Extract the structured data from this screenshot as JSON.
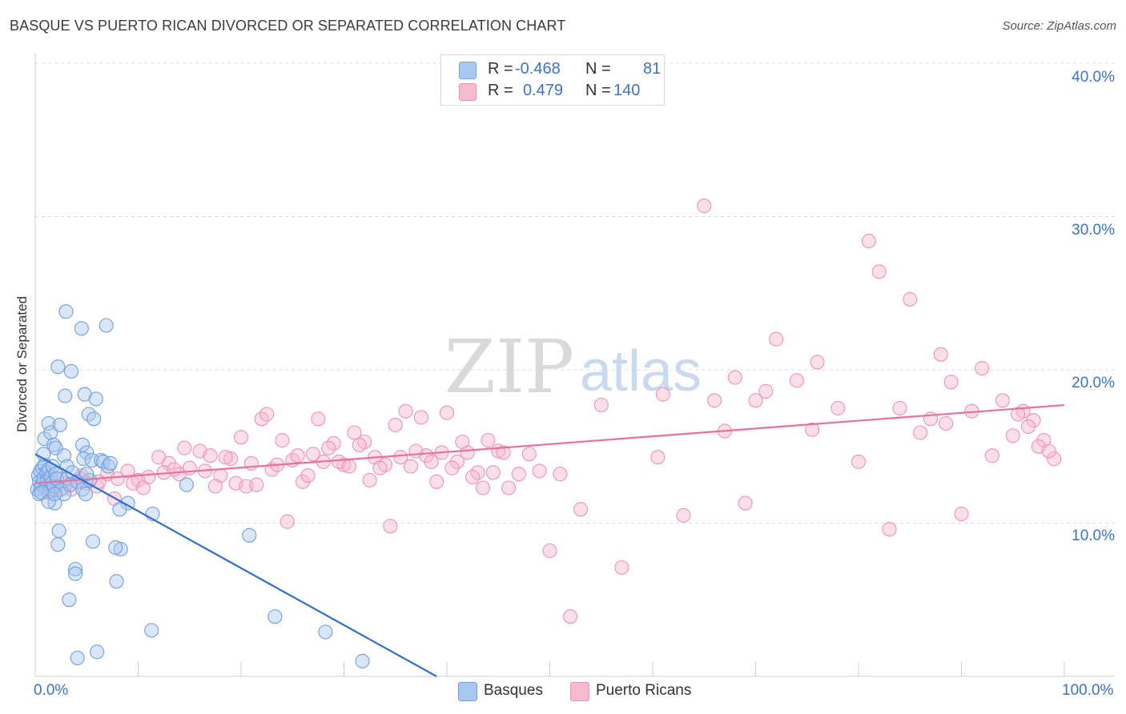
{
  "title": "BASQUE VS PUERTO RICAN DIVORCED OR SEPARATED CORRELATION CHART",
  "source": "Source: ZipAtlas.com",
  "watermark": {
    "zip": "ZIP",
    "atlas": "atlas"
  },
  "legend": {
    "rows": [
      {
        "r_label": "R =",
        "r_value": "-0.468",
        "n_label": "N =",
        "n_value": "81",
        "color": "#a9c7f0"
      },
      {
        "r_label": "R =",
        "r_value": "0.479",
        "n_label": "N =",
        "n_value": "140",
        "color": "#f7b9cc"
      }
    ]
  },
  "bottom_legend": [
    {
      "label": "Basques",
      "color": "#a9c7f0"
    },
    {
      "label": "Puerto Ricans",
      "color": "#f7b9cc"
    }
  ],
  "chart_data": {
    "type": "scatter",
    "title": "BASQUE VS PUERTO RICAN DIVORCED OR SEPARATED CORRELATION CHART",
    "xlabel": "",
    "ylabel": "Divorced or Separated",
    "xlim": [
      0,
      100
    ],
    "ylim": [
      0,
      40
    ],
    "x_tick_labels": [
      "0.0%",
      "100.0%"
    ],
    "y_ticks": [
      10,
      20,
      30,
      40
    ],
    "y_tick_labels": [
      "10.0%",
      "20.0%",
      "30.0%",
      "40.0%"
    ],
    "grid": true,
    "legend_position": "top-center",
    "colors": {
      "basques": "#6f9fe0",
      "basques_fill": "#a9c7f0",
      "basques_line": "#2f6fd0",
      "pr": "#ef92b1",
      "pr_fill": "#f7b9cc",
      "pr_line": "#e8709a"
    },
    "series": [
      {
        "name": "Basques",
        "trend": {
          "x": [
            0,
            39.0
          ],
          "y": [
            14.5,
            0
          ]
        },
        "points": [
          [
            0.2,
            12.2
          ],
          [
            0.3,
            13.1
          ],
          [
            0.4,
            12.7
          ],
          [
            0.5,
            13.4
          ],
          [
            0.6,
            12.5
          ],
          [
            0.7,
            13.6
          ],
          [
            0.8,
            12.9
          ],
          [
            0.9,
            13.8
          ],
          [
            1.0,
            12.3
          ],
          [
            1.1,
            13.3
          ],
          [
            1.2,
            12.8
          ],
          [
            1.3,
            13.5
          ],
          [
            1.4,
            12.1
          ],
          [
            1.5,
            13.0
          ],
          [
            1.6,
            12.6
          ],
          [
            1.7,
            13.7
          ],
          [
            1.8,
            12.4
          ],
          [
            1.9,
            11.3
          ],
          [
            2.0,
            13.2
          ],
          [
            2.1,
            12.9
          ],
          [
            0.4,
            11.9
          ],
          [
            0.6,
            12.0
          ],
          [
            0.9,
            15.5
          ],
          [
            1.3,
            16.5
          ],
          [
            1.5,
            15.9
          ],
          [
            1.8,
            15.1
          ],
          [
            2.0,
            14.9
          ],
          [
            2.4,
            16.4
          ],
          [
            2.8,
            14.4
          ],
          [
            3.1,
            13.7
          ],
          [
            2.2,
            20.2
          ],
          [
            3.5,
            19.9
          ],
          [
            2.9,
            18.3
          ],
          [
            3.0,
            23.8
          ],
          [
            4.5,
            22.7
          ],
          [
            4.8,
            18.4
          ],
          [
            5.9,
            18.1
          ],
          [
            5.2,
            17.1
          ],
          [
            5.7,
            16.8
          ],
          [
            6.9,
            22.9
          ],
          [
            4.6,
            15.1
          ],
          [
            5.0,
            14.6
          ],
          [
            4.7,
            14.2
          ],
          [
            5.5,
            14.1
          ],
          [
            6.4,
            14.1
          ],
          [
            6.6,
            14.0
          ],
          [
            7.1,
            13.7
          ],
          [
            3.1,
            12.9
          ],
          [
            3.6,
            13.3
          ],
          [
            4.1,
            12.7
          ],
          [
            4.6,
            12.2
          ],
          [
            4.9,
            11.9
          ],
          [
            5.3,
            12.8
          ],
          [
            2.5,
            12.2
          ],
          [
            2.8,
            11.9
          ],
          [
            3.4,
            12.5
          ],
          [
            2.3,
            9.5
          ],
          [
            2.2,
            8.6
          ],
          [
            5.6,
            8.8
          ],
          [
            8.3,
            8.3
          ],
          [
            3.9,
            7.0
          ],
          [
            3.9,
            6.7
          ],
          [
            7.9,
            6.2
          ],
          [
            3.3,
            5.0
          ],
          [
            11.4,
            10.6
          ],
          [
            14.7,
            12.5
          ],
          [
            20.8,
            9.2
          ],
          [
            9.0,
            11.3
          ],
          [
            11.3,
            3.0
          ],
          [
            23.3,
            3.9
          ],
          [
            28.2,
            2.9
          ],
          [
            7.8,
            8.4
          ],
          [
            4.1,
            1.2
          ],
          [
            6.0,
            1.6
          ],
          [
            31.8,
            1.0
          ],
          [
            1.3,
            11.4
          ],
          [
            1.9,
            11.9
          ],
          [
            8.2,
            10.9
          ],
          [
            0.8,
            14.5
          ],
          [
            7.3,
            13.9
          ],
          [
            5.0,
            13.2
          ]
        ]
      },
      {
        "name": "Puerto Ricans",
        "trend": {
          "x": [
            0,
            100
          ],
          "y": [
            12.6,
            17.7
          ]
        },
        "points": [
          [
            0.5,
            12.3
          ],
          [
            1.0,
            12.8
          ],
          [
            1.5,
            12.0
          ],
          [
            2.0,
            12.4
          ],
          [
            2.5,
            12.9
          ],
          [
            3.0,
            12.6
          ],
          [
            3.5,
            12.2
          ],
          [
            4.0,
            12.7
          ],
          [
            4.5,
            13.1
          ],
          [
            5.0,
            12.6
          ],
          [
            6.0,
            12.4
          ],
          [
            7.0,
            13.2
          ],
          [
            8.0,
            12.9
          ],
          [
            9.0,
            13.4
          ],
          [
            10.0,
            12.8
          ],
          [
            11.0,
            13.0
          ],
          [
            12.0,
            14.3
          ],
          [
            13.0,
            13.9
          ],
          [
            14.0,
            13.2
          ],
          [
            15.0,
            13.6
          ],
          [
            16.0,
            14.7
          ],
          [
            17.0,
            14.4
          ],
          [
            18.0,
            13.1
          ],
          [
            19.0,
            14.2
          ],
          [
            20.0,
            15.6
          ],
          [
            21.0,
            13.9
          ],
          [
            22.0,
            16.8
          ],
          [
            23.0,
            13.5
          ],
          [
            24.0,
            15.4
          ],
          [
            25.0,
            14.1
          ],
          [
            26.0,
            12.7
          ],
          [
            27.0,
            14.5
          ],
          [
            28.0,
            14.0
          ],
          [
            29.0,
            15.2
          ],
          [
            30.0,
            13.8
          ],
          [
            31.0,
            15.9
          ],
          [
            32.0,
            15.3
          ],
          [
            33.0,
            14.3
          ],
          [
            34.0,
            13.8
          ],
          [
            35.0,
            16.4
          ],
          [
            36.0,
            17.3
          ],
          [
            37.0,
            14.7
          ],
          [
            38.0,
            14.4
          ],
          [
            39.0,
            12.7
          ],
          [
            40.0,
            17.2
          ],
          [
            41.0,
            14.0
          ],
          [
            42.0,
            14.6
          ],
          [
            43.0,
            13.3
          ],
          [
            44.0,
            15.4
          ],
          [
            45.0,
            14.7
          ],
          [
            46.0,
            12.3
          ],
          [
            47.0,
            13.2
          ],
          [
            48.0,
            14.5
          ],
          [
            49.0,
            13.4
          ],
          [
            50.0,
            8.2
          ],
          [
            51.0,
            13.2
          ],
          [
            52.0,
            3.9
          ],
          [
            53.0,
            10.9
          ],
          [
            55.0,
            17.7
          ],
          [
            57.0,
            7.1
          ],
          [
            61.0,
            18.4
          ],
          [
            63.0,
            10.5
          ],
          [
            65.0,
            30.7
          ],
          [
            66.0,
            18.0
          ],
          [
            67.0,
            16.0
          ],
          [
            68.0,
            19.5
          ],
          [
            69.0,
            11.3
          ],
          [
            70.0,
            18.0
          ],
          [
            71.0,
            18.6
          ],
          [
            72.0,
            22.0
          ],
          [
            74.0,
            19.3
          ],
          [
            76.0,
            20.5
          ],
          [
            78.0,
            17.5
          ],
          [
            80.0,
            14.0
          ],
          [
            81.0,
            28.4
          ],
          [
            82.0,
            26.4
          ],
          [
            83.0,
            9.6
          ],
          [
            84.0,
            17.5
          ],
          [
            85.0,
            24.6
          ],
          [
            86.0,
            15.9
          ],
          [
            87.0,
            16.8
          ],
          [
            88.0,
            21.0
          ],
          [
            89.0,
            19.2
          ],
          [
            90.0,
            10.6
          ],
          [
            91.0,
            17.3
          ],
          [
            92.0,
            20.1
          ],
          [
            93.0,
            14.4
          ],
          [
            94.0,
            18.0
          ],
          [
            95.0,
            15.7
          ],
          [
            96.0,
            17.3
          ],
          [
            97.0,
            16.7
          ],
          [
            98.0,
            15.4
          ],
          [
            99.0,
            14.2
          ],
          [
            1.2,
            12.0
          ],
          [
            2.8,
            12.3
          ],
          [
            4.4,
            12.9
          ],
          [
            6.2,
            12.7
          ],
          [
            7.7,
            11.6
          ],
          [
            9.5,
            12.6
          ],
          [
            10.5,
            12.3
          ],
          [
            12.5,
            13.3
          ],
          [
            13.5,
            13.5
          ],
          [
            14.5,
            14.9
          ],
          [
            16.5,
            13.4
          ],
          [
            17.5,
            12.4
          ],
          [
            18.5,
            14.3
          ],
          [
            19.5,
            12.6
          ],
          [
            20.5,
            12.4
          ],
          [
            21.5,
            12.5
          ],
          [
            22.5,
            17.1
          ],
          [
            23.5,
            13.8
          ],
          [
            24.5,
            10.1
          ],
          [
            25.5,
            14.4
          ],
          [
            26.5,
            13.1
          ],
          [
            27.5,
            16.8
          ],
          [
            28.5,
            14.9
          ],
          [
            29.5,
            14.0
          ],
          [
            30.5,
            13.7
          ],
          [
            31.5,
            15.1
          ],
          [
            32.5,
            12.8
          ],
          [
            33.5,
            13.6
          ],
          [
            34.5,
            9.8
          ],
          [
            35.5,
            14.3
          ],
          [
            36.5,
            13.7
          ],
          [
            37.5,
            16.9
          ],
          [
            38.5,
            14.0
          ],
          [
            39.5,
            14.6
          ],
          [
            40.5,
            13.6
          ],
          [
            41.5,
            15.3
          ],
          [
            42.5,
            13.0
          ],
          [
            43.5,
            12.3
          ],
          [
            44.5,
            13.3
          ],
          [
            45.5,
            14.6
          ],
          [
            95.5,
            17.1
          ],
          [
            96.5,
            16.3
          ],
          [
            97.5,
            15.0
          ],
          [
            98.5,
            14.7
          ],
          [
            60.5,
            14.3
          ],
          [
            75.5,
            16.1
          ],
          [
            88.5,
            16.5
          ]
        ]
      }
    ]
  }
}
